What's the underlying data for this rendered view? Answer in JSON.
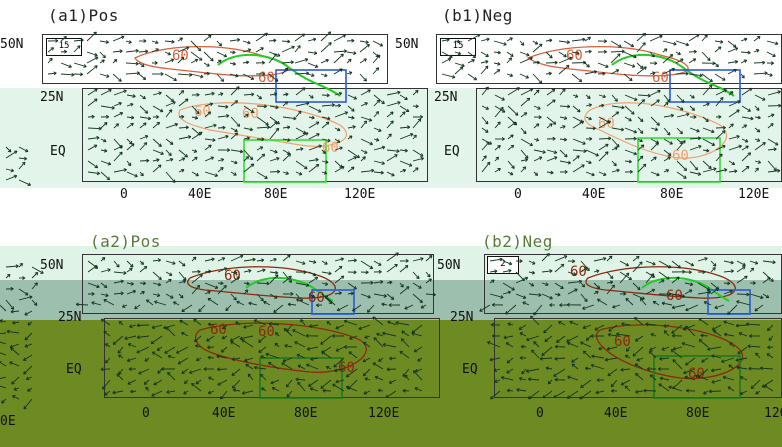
{
  "panels": [
    {
      "title": "(a1)Pos",
      "scale": "15"
    },
    {
      "title": "(b1)Neg",
      "scale": "15"
    },
    {
      "title": "(a2)Pos",
      "scale": ""
    },
    {
      "title": "(b2)Neg",
      "scale": "2"
    }
  ],
  "lat_labels": {
    "n50": "50N",
    "n25": "25N",
    "eq": "EQ"
  },
  "lon_labels": [
    "0",
    "40E",
    "80E",
    "120E"
  ],
  "left_fragment_label": "0E",
  "contour_label": "60",
  "colors": {
    "upper_band": "#e3f4ea",
    "lower_band": "#6e8a23",
    "mid_band": "#9cbfae",
    "contour_red": "#d8603a",
    "contour_orange": "#f0a070",
    "contour_dark": "#8b2a10",
    "green_line": "#22cc22",
    "blue_box": "#2a5ad8",
    "green_box": "#33dd33",
    "vector": "#12361e"
  }
}
